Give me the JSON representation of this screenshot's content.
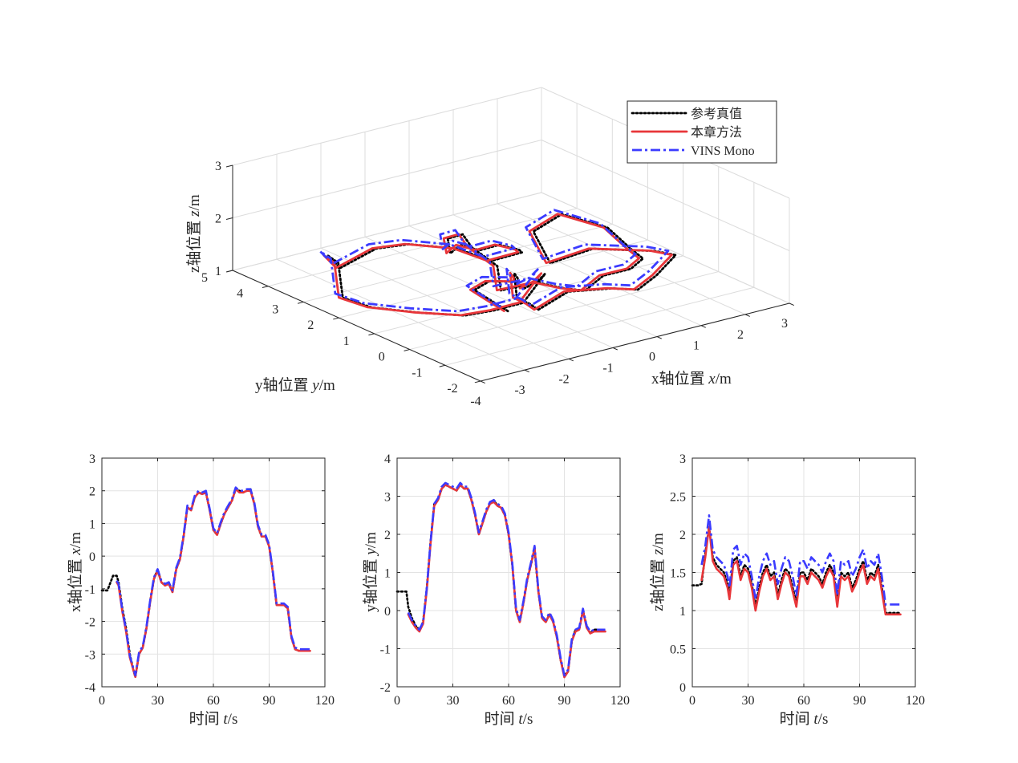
{
  "colors": {
    "reference": "#000000",
    "proposed": "#e8363a",
    "vins": "#3b3bff",
    "grid": "#dcdcdc",
    "axis": "#262626"
  },
  "legend": {
    "placement": "top-right",
    "entries": [
      {
        "label": "参考真值",
        "style": "dotted",
        "color": "#000000"
      },
      {
        "label": "本章方法",
        "style": "solid",
        "color": "#e8363a"
      },
      {
        "label": "VINS Mono",
        "style": "dashdot",
        "color": "#3b3bff"
      }
    ]
  },
  "chart_data": [
    {
      "type": "line",
      "projection": "3d",
      "xlabel": "x轴位置",
      "xlabel_var": "x",
      "xlabel_unit": "/m",
      "ylabel": "y轴位置",
      "ylabel_var": "y",
      "ylabel_unit": "/m",
      "zlabel": "z轴位置",
      "zlabel_var": "z",
      "zlabel_unit": "/m",
      "xlim": [
        -4,
        3
      ],
      "ylim": [
        -2,
        5
      ],
      "zlim": [
        1,
        3
      ],
      "xticks": [
        "-4",
        "-3",
        "-2",
        "-1",
        "0",
        "1",
        "2",
        "3"
      ],
      "yticks": [
        "-2",
        "-1",
        "0",
        "1",
        "2",
        "3",
        "4",
        "5"
      ],
      "zticks": [
        "1",
        "2",
        "3"
      ],
      "grid": true,
      "path_xy": [
        [
          -1.1,
          0.5
        ],
        [
          -1.2,
          0.0
        ],
        [
          -1.5,
          -0.6
        ],
        [
          -2.0,
          -0.6
        ],
        [
          -2.5,
          -0.4
        ],
        [
          -3.0,
          -0.2
        ],
        [
          -3.5,
          0.5
        ],
        [
          -3.75,
          1.5
        ],
        [
          -3.6,
          2.5
        ],
        [
          -3.3,
          3.0
        ],
        [
          -3.3,
          3.3
        ],
        [
          -3.1,
          3.2
        ],
        [
          -2.2,
          3.3
        ],
        [
          -1.5,
          3.25
        ],
        [
          -0.6,
          3.0
        ],
        [
          0.0,
          2.8
        ],
        [
          0.3,
          2.3
        ],
        [
          0.0,
          2.0
        ],
        [
          -0.3,
          2.2
        ],
        [
          -0.5,
          2.5
        ],
        [
          -0.7,
          2.8
        ],
        [
          -0.6,
          3.2
        ],
        [
          -0.5,
          3.4
        ],
        [
          -0.4,
          3.1
        ],
        [
          -0.6,
          2.6
        ],
        [
          -0.5,
          2.0
        ],
        [
          -0.9,
          1.4
        ],
        [
          -0.8,
          0.5
        ],
        [
          -0.6,
          0.0
        ],
        [
          -0.2,
          -0.1
        ],
        [
          0.3,
          0.0
        ],
        [
          1.0,
          0.1
        ],
        [
          1.6,
          0.5
        ],
        [
          1.9,
          1.2
        ],
        [
          2.0,
          2.0
        ],
        [
          1.6,
          2.8
        ],
        [
          0.8,
          2.6
        ],
        [
          0.7,
          2.0
        ],
        [
          1.1,
          1.3
        ],
        [
          2.0,
          0.7
        ],
        [
          2.1,
          0.2
        ],
        [
          1.5,
          0.0
        ],
        [
          0.6,
          -0.6
        ],
        [
          0.0,
          -0.6
        ],
        [
          -0.9,
          -0.5
        ],
        [
          -1.5,
          -0.4
        ],
        [
          -1.6,
          -0.3
        ],
        [
          -1.5,
          0.2
        ],
        [
          -1.0,
          0.9
        ],
        [
          -0.6,
          1.3
        ],
        [
          -0.2,
          1.8
        ],
        [
          -0.6,
          2.1
        ],
        [
          -1.1,
          1.9
        ],
        [
          -1.2,
          1.3
        ],
        [
          -1.3,
          0.7
        ]
      ],
      "series": [
        {
          "name": "参考真值",
          "dz": 0.0,
          "dx": 0.05,
          "dy": -0.05
        },
        {
          "name": "本章方法",
          "dz": 0.0,
          "dx": 0.0,
          "dy": 0.0
        },
        {
          "name": "VINS Mono",
          "dz": 0.07,
          "dx": -0.04,
          "dy": 0.05
        }
      ]
    },
    {
      "type": "line",
      "xlabel": "时间",
      "xlabel_var": "t",
      "xlabel_unit": "/s",
      "ylabel": "x轴位置",
      "ylabel_var": "x",
      "ylabel_unit": "/m",
      "xlim": [
        0,
        120
      ],
      "ylim": [
        -4,
        3
      ],
      "xticks": [
        "0",
        "30",
        "60",
        "90",
        "120"
      ],
      "yticks": [
        "-4",
        "-3",
        "-2",
        "-1",
        "0",
        "1",
        "2",
        "3"
      ],
      "grid": true,
      "x": [
        0,
        3,
        5,
        6,
        8,
        9,
        11,
        13,
        15,
        17,
        18,
        20,
        22,
        24,
        26,
        28,
        30,
        32,
        34,
        36,
        38,
        40,
        42,
        44,
        46,
        48,
        50,
        52,
        54,
        56,
        58,
        60,
        62,
        64,
        66,
        68,
        70,
        72,
        74,
        76,
        78,
        80,
        82,
        84,
        86,
        88,
        90,
        92,
        94,
        96,
        98,
        100,
        102,
        104,
        106,
        108,
        110,
        112
      ],
      "series": [
        {
          "name": "参考真值",
          "values": [
            -1.05,
            -1.05,
            -0.75,
            -0.6,
            -0.6,
            -0.8,
            -1.6,
            -2.2,
            -3.0,
            -3.5,
            -3.7,
            -3.0,
            -2.8,
            -2.2,
            -1.4,
            -0.7,
            -0.4,
            -0.8,
            -0.9,
            -0.8,
            -1.1,
            -0.4,
            -0.1,
            0.6,
            1.5,
            1.4,
            1.8,
            1.95,
            1.9,
            1.95,
            1.4,
            0.8,
            0.65,
            1.0,
            1.3,
            1.5,
            1.7,
            2.05,
            2.0,
            1.95,
            2.0,
            2.05,
            1.6,
            0.9,
            0.6,
            0.6,
            0.3,
            -0.5,
            -1.5,
            -1.5,
            -1.5,
            -1.6,
            -2.5,
            -2.85,
            -2.9,
            -2.9,
            -2.9,
            -2.9
          ]
        },
        {
          "name": "本章方法",
          "values": [
            null,
            null,
            null,
            null,
            -0.8,
            -0.9,
            -1.7,
            -2.3,
            -3.1,
            -3.5,
            -3.7,
            -3.0,
            -2.8,
            -2.2,
            -1.4,
            -0.7,
            -0.45,
            -0.8,
            -0.9,
            -0.85,
            -1.1,
            -0.4,
            -0.1,
            0.6,
            1.5,
            1.4,
            1.8,
            1.95,
            1.9,
            1.95,
            1.4,
            0.8,
            0.65,
            1.0,
            1.3,
            1.5,
            1.7,
            2.05,
            1.95,
            1.95,
            2.0,
            2.0,
            1.6,
            0.9,
            0.6,
            0.6,
            0.3,
            -0.5,
            -1.5,
            -1.5,
            -1.5,
            -1.6,
            -2.5,
            -2.85,
            -2.9,
            -2.9,
            -2.9,
            -2.9
          ]
        },
        {
          "name": "VINS Mono",
          "values": [
            null,
            null,
            null,
            null,
            -0.75,
            -0.85,
            -1.65,
            -2.25,
            -3.05,
            -3.45,
            -3.65,
            -2.95,
            -2.75,
            -2.15,
            -1.35,
            -0.65,
            -0.4,
            -0.75,
            -0.85,
            -0.8,
            -1.05,
            -0.35,
            -0.05,
            0.65,
            1.55,
            1.45,
            1.85,
            2.0,
            1.95,
            2.0,
            1.45,
            0.85,
            0.7,
            1.05,
            1.35,
            1.55,
            1.75,
            2.1,
            2.0,
            2.0,
            2.05,
            2.05,
            1.65,
            0.95,
            0.65,
            0.65,
            0.35,
            -0.45,
            -1.45,
            -1.45,
            -1.45,
            -1.55,
            -2.45,
            -2.8,
            -2.85,
            -2.85,
            -2.85,
            -2.85
          ]
        }
      ]
    },
    {
      "type": "line",
      "xlabel": "时间",
      "xlabel_var": "t",
      "xlabel_unit": "/s",
      "ylabel": "y轴位置",
      "ylabel_var": "y",
      "ylabel_unit": "/m",
      "xlim": [
        0,
        120
      ],
      "ylim": [
        -2,
        4
      ],
      "xticks": [
        "0",
        "30",
        "60",
        "90",
        "120"
      ],
      "yticks": [
        "-2",
        "-1",
        "0",
        "1",
        "2",
        "3",
        "4"
      ],
      "grid": true,
      "x": [
        0,
        3,
        5,
        6,
        8,
        10,
        12,
        14,
        16,
        18,
        20,
        22,
        24,
        26,
        28,
        30,
        32,
        34,
        36,
        38,
        40,
        42,
        44,
        46,
        48,
        50,
        52,
        54,
        56,
        58,
        60,
        62,
        64,
        66,
        68,
        70,
        72,
        74,
        76,
        78,
        80,
        82,
        84,
        86,
        88,
        90,
        92,
        94,
        96,
        98,
        100,
        102,
        104,
        106,
        108,
        110,
        112
      ],
      "series": [
        {
          "name": "参考真值",
          "values": [
            0.5,
            0.5,
            0.5,
            0.1,
            -0.2,
            -0.4,
            -0.5,
            -0.3,
            0.6,
            1.8,
            2.8,
            2.9,
            3.2,
            3.3,
            3.25,
            3.2,
            3.15,
            3.3,
            3.2,
            3.2,
            2.9,
            2.5,
            2.0,
            2.3,
            2.6,
            2.8,
            2.9,
            2.75,
            2.7,
            2.5,
            2.0,
            1.2,
            0.0,
            -0.3,
            0.2,
            0.8,
            1.2,
            1.6,
            0.5,
            -0.2,
            -0.3,
            -0.1,
            -0.3,
            -0.7,
            -1.3,
            -1.7,
            -1.6,
            -0.8,
            -0.5,
            -0.5,
            0.0,
            -0.4,
            -0.6,
            -0.5,
            -0.5,
            -0.5,
            -0.5
          ]
        },
        {
          "name": "本章方法",
          "values": [
            null,
            null,
            null,
            -0.1,
            -0.3,
            -0.45,
            -0.55,
            -0.35,
            0.55,
            1.75,
            2.75,
            2.9,
            3.2,
            3.3,
            3.25,
            3.2,
            3.15,
            3.3,
            3.2,
            3.2,
            2.9,
            2.5,
            2.0,
            2.3,
            2.6,
            2.8,
            2.85,
            2.75,
            2.7,
            2.5,
            2.0,
            1.2,
            0.0,
            -0.3,
            0.2,
            0.8,
            1.2,
            1.65,
            0.5,
            -0.2,
            -0.3,
            -0.1,
            -0.3,
            -0.7,
            -1.3,
            -1.75,
            -1.6,
            -0.8,
            -0.55,
            -0.5,
            0.0,
            -0.45,
            -0.6,
            -0.55,
            -0.55,
            -0.55,
            -0.55
          ]
        },
        {
          "name": "VINS Mono",
          "values": [
            null,
            null,
            null,
            -0.05,
            -0.25,
            -0.4,
            -0.5,
            -0.3,
            0.6,
            1.8,
            2.8,
            2.95,
            3.25,
            3.35,
            3.3,
            3.25,
            3.2,
            3.35,
            3.25,
            3.25,
            2.95,
            2.55,
            2.05,
            2.35,
            2.65,
            2.85,
            2.9,
            2.8,
            2.75,
            2.55,
            2.05,
            1.25,
            0.05,
            -0.25,
            0.25,
            0.85,
            1.25,
            1.7,
            0.55,
            -0.15,
            -0.25,
            -0.05,
            -0.25,
            -0.65,
            -1.25,
            -1.7,
            -1.55,
            -0.75,
            -0.5,
            -0.45,
            0.05,
            -0.4,
            -0.55,
            -0.5,
            -0.5,
            -0.5,
            -0.5
          ]
        }
      ]
    },
    {
      "type": "line",
      "xlabel": "时间",
      "xlabel_var": "t",
      "xlabel_unit": "/s",
      "ylabel": "z轴位置",
      "ylabel_var": "z",
      "ylabel_unit": "/m",
      "xlim": [
        0,
        120
      ],
      "ylim": [
        0,
        3
      ],
      "xticks": [
        "0",
        "30",
        "60",
        "90",
        "120"
      ],
      "yticks": [
        "0",
        "0.5",
        "1",
        "1.5",
        "2",
        "2.5",
        "3"
      ],
      "grid": true,
      "x": [
        0,
        3,
        5,
        7,
        9,
        11,
        13,
        15,
        17,
        19,
        20,
        22,
        24,
        26,
        28,
        30,
        32,
        34,
        36,
        38,
        40,
        42,
        44,
        46,
        48,
        50,
        52,
        54,
        56,
        58,
        60,
        62,
        64,
        66,
        68,
        70,
        72,
        74,
        76,
        78,
        80,
        82,
        84,
        86,
        88,
        90,
        92,
        94,
        96,
        98,
        100,
        102,
        104,
        106,
        108,
        110,
        112
      ],
      "series": [
        {
          "name": "参考真值",
          "values": [
            1.33,
            1.33,
            1.35,
            1.75,
            2.1,
            1.7,
            1.6,
            1.55,
            1.5,
            1.35,
            1.2,
            1.65,
            1.7,
            1.45,
            1.6,
            1.55,
            1.35,
            1.05,
            1.3,
            1.5,
            1.6,
            1.45,
            1.5,
            1.2,
            1.4,
            1.55,
            1.5,
            1.3,
            1.1,
            1.5,
            1.5,
            1.4,
            1.55,
            1.5,
            1.45,
            1.35,
            1.5,
            1.6,
            1.5,
            1.1,
            1.5,
            1.45,
            1.5,
            1.3,
            1.4,
            1.55,
            1.65,
            1.4,
            1.5,
            1.45,
            1.6,
            1.3,
            0.97,
            0.97,
            0.97,
            0.97,
            0.97
          ]
        },
        {
          "name": "本章方法",
          "values": [
            null,
            null,
            1.4,
            1.7,
            2.1,
            1.65,
            1.55,
            1.5,
            1.45,
            1.3,
            1.15,
            1.6,
            1.65,
            1.4,
            1.55,
            1.5,
            1.3,
            1.0,
            1.25,
            1.45,
            1.55,
            1.4,
            1.45,
            1.15,
            1.35,
            1.5,
            1.45,
            1.25,
            1.05,
            1.45,
            1.45,
            1.35,
            1.5,
            1.45,
            1.4,
            1.3,
            1.45,
            1.55,
            1.45,
            1.05,
            1.45,
            1.4,
            1.45,
            1.25,
            1.35,
            1.5,
            1.6,
            1.35,
            1.45,
            1.4,
            1.55,
            1.25,
            0.95,
            0.95,
            0.95,
            0.95,
            0.95
          ]
        },
        {
          "name": "VINS Mono",
          "values": [
            null,
            null,
            1.6,
            1.85,
            2.25,
            1.8,
            1.7,
            1.65,
            1.6,
            1.45,
            1.3,
            1.8,
            1.85,
            1.6,
            1.75,
            1.7,
            1.45,
            1.15,
            1.45,
            1.65,
            1.75,
            1.6,
            1.65,
            1.35,
            1.55,
            1.7,
            1.65,
            1.45,
            1.2,
            1.65,
            1.65,
            1.55,
            1.7,
            1.65,
            1.6,
            1.5,
            1.65,
            1.75,
            1.65,
            1.2,
            1.65,
            1.6,
            1.65,
            1.45,
            1.55,
            1.7,
            1.8,
            1.55,
            1.65,
            1.6,
            1.75,
            1.45,
            1.08,
            1.08,
            1.08,
            1.08,
            1.08
          ]
        }
      ]
    }
  ]
}
